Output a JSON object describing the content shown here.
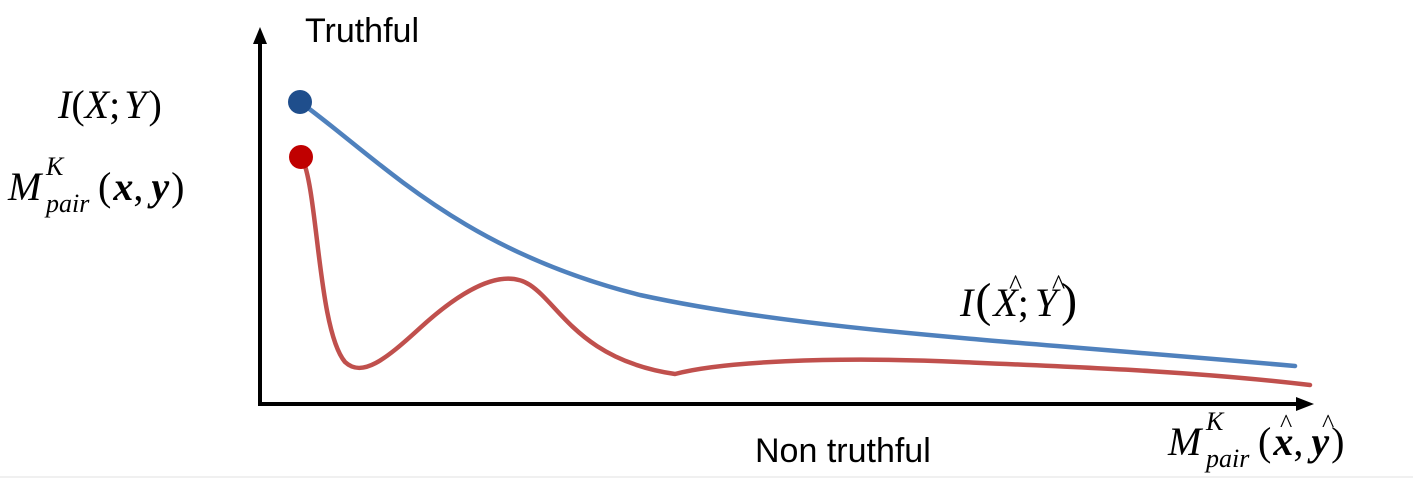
{
  "labels": {
    "y_axis": "Truthful",
    "x_axis": "Non truthful"
  },
  "math": {
    "ixy": {
      "I": "I",
      "open": "(",
      "X": "X",
      "semi": ";",
      "Y": "Y",
      "close": ")"
    },
    "mpair_true": {
      "M": "M",
      "sup": "K",
      "sub": "pair",
      "open": "(",
      "x": "x",
      "comma": ",",
      "y": "y",
      "close": ")"
    },
    "i_hat": {
      "I": "I",
      "open": "(",
      "X": "X",
      "semi": ";",
      "Y": "Y",
      "close": ")",
      "hat": "^"
    },
    "mpair_hat": {
      "M": "M",
      "sup": "K",
      "sub": "pair",
      "open": "(",
      "x": "x",
      "comma": ",",
      "y": "y",
      "close": ")",
      "hat": "^"
    }
  },
  "curves": [
    {
      "label_ref": "i_hat",
      "color": "#4f81bd"
    },
    {
      "label_ref": "mpair_hat",
      "color": "#c0504d"
    }
  ],
  "markers": [
    {
      "label_ref": "ixy",
      "color": "#1f4e8c"
    },
    {
      "label_ref": "mpair_true",
      "color": "#c00000"
    }
  ],
  "colors": {
    "axis": "#000000",
    "text": "#000000",
    "blue_curve": "#4f81bd",
    "red_curve": "#c0504d",
    "blue_dot": "#1f4e8c",
    "red_dot": "#c00000"
  }
}
